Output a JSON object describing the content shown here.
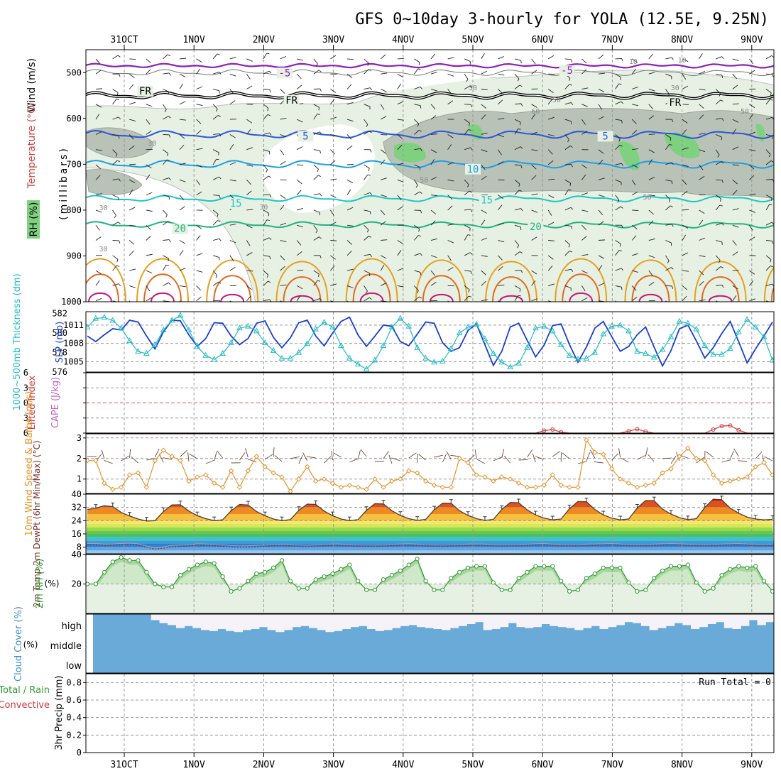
{
  "title": "GFS 0~10day 3-hourly for YOLA (12.5E, 9.25N)",
  "dates": [
    "31OCT",
    "1NOV",
    "2NOV",
    "3NOV",
    "4NOV",
    "5NOV",
    "6NOV",
    "7NOV",
    "8NOV",
    "9NOV"
  ],
  "colors": {
    "frame": "#000000",
    "grid": "#999999",
    "temp_purple": "#8b1fb8",
    "temp_blue": "#2c57d9",
    "temp_lightblue": "#1e9fe6",
    "temp_cyan": "#1ec6c6",
    "temp_green": "#20b47f",
    "temp_orange": "#e6a01e",
    "temp_darkorange": "#e06a1e",
    "temp_magenta": "#c8147a",
    "slp": "#1a3fd0",
    "thickness": "#22bcc4",
    "wind10": "#e6922a",
    "rh2m": "#2f9a2f",
    "cloud": "#6aaad8",
    "cloud_clear": "#f6f2fa"
  },
  "chart_data": [
    {
      "id": "upper_air",
      "type": "contour",
      "ylabel": "(millibars)",
      "side_labels": [
        "Wind (m/s)",
        "Temperature (°C)",
        "RH (%)"
      ],
      "yticks": [
        500,
        600,
        700,
        800,
        900,
        1000
      ],
      "ylim": [
        450,
        1000
      ],
      "isotherm_labels": [
        {
          "text": "-5",
          "day": 2.3,
          "p": 500
        },
        {
          "text": "-5",
          "day": 6.35,
          "p": 495
        },
        {
          "text": "FR",
          "day": 0.3,
          "p": 540
        },
        {
          "text": "FR",
          "day": 2.4,
          "p": 560
        },
        {
          "text": "FR",
          "day": 7.9,
          "p": 565
        },
        {
          "text": "5",
          "day": 2.6,
          "p": 638
        },
        {
          "text": "5",
          "day": 6.9,
          "p": 638
        },
        {
          "text": "10",
          "day": 5.0,
          "p": 710
        },
        {
          "text": "15",
          "day": 1.6,
          "p": 785
        },
        {
          "text": "15",
          "day": 5.2,
          "p": 778
        },
        {
          "text": "20",
          "day": 0.8,
          "p": 840
        },
        {
          "text": "20",
          "day": 5.9,
          "p": 836
        }
      ],
      "rh_labels": [
        "10",
        "30",
        "50",
        "60",
        "30",
        "50",
        "30",
        "30",
        "50",
        "30",
        "10",
        "30",
        "50"
      ]
    },
    {
      "id": "slp_thickness",
      "type": "line",
      "ylabel_left": "1000~500mb Thickness (dm)",
      "ylabel_right": "SLP (mb)",
      "yticks_left": [
        576,
        578,
        580,
        582
      ],
      "yticks_right": [
        1005,
        1008,
        1011
      ],
      "series": [
        {
          "name": "SLP (mb)",
          "values": [
            1009.2,
            1008.3,
            1009.4,
            1010.4,
            1010.2,
            1011.8,
            1011.5,
            1009.2,
            1007.1,
            1009.9,
            1011.8,
            1011.7,
            1009.4,
            1007.5,
            1008.8,
            1011.4,
            1011.3,
            1009.2,
            1007.8,
            1008.8,
            1011.3,
            1011.7,
            1009.0,
            1007.3,
            1008.9,
            1011.4,
            1011.8,
            1009.2,
            1007.6,
            1009.7,
            1011.6,
            1012.3,
            1009.4,
            1007.5,
            1009.2,
            1011.0,
            1010.8,
            1008.3,
            1007.6,
            1009.5,
            1011.5,
            1011.3,
            1008.1,
            1006.7,
            1007.3,
            1010.1,
            1011.2,
            1007.8,
            1004.4,
            1006.7,
            1010.7,
            1011.3,
            1008.5,
            1005.8,
            1007.7,
            1010.9,
            1011.2,
            1007.8,
            1004.9,
            1007.4,
            1010.5,
            1011.6,
            1009.1,
            1006.7,
            1007.5,
            1009.4,
            1010.7,
            1007.4,
            1004.3,
            1006.8,
            1010.4,
            1011.0,
            1008.4,
            1005.6,
            1007.3,
            1009.6,
            1011.6,
            1008.3,
            1004.8,
            1007.1,
            1009.2,
            1011.5
          ]
        },
        {
          "name": "Thickness (dm)",
          "values": [
            580.6,
            581.5,
            581.6,
            581.3,
            580.5,
            579.2,
            578.1,
            577.9,
            578.8,
            580.3,
            581.3,
            581.8,
            580.3,
            578.6,
            577.7,
            577.3,
            577.9,
            579.0,
            580.5,
            580.7,
            580.2,
            579.0,
            578.2,
            577.4,
            577.4,
            578.0,
            578.9,
            580.4,
            581.1,
            580.6,
            578.7,
            577.4,
            576.8,
            576.3,
            577.2,
            578.7,
            580.6,
            581.5,
            580.7,
            578.5,
            577.4,
            577.0,
            577.1,
            578.4,
            580.0,
            580.6,
            580.9,
            579.4,
            577.9,
            577.0,
            576.5,
            576.9,
            578.5,
            580.5,
            580.7,
            580.2,
            578.8,
            577.7,
            577.3,
            577.4,
            578.0,
            579.9,
            580.7,
            580.8,
            580.2,
            578.1,
            577.9,
            577.5,
            578.3,
            579.6,
            581.2,
            581.0,
            580.4,
            578.7,
            577.8,
            577.8,
            578.4,
            580.1,
            581.4,
            580.6,
            579.6,
            577.2
          ]
        }
      ]
    },
    {
      "id": "cape_li",
      "type": "line",
      "ylabel_left": "Lifted Index",
      "ylabel_right": "CAPE (J/kg)",
      "yticks": [
        -6,
        -3,
        0,
        3,
        6
      ],
      "ylim": [
        6,
        -6
      ],
      "reference_line": 0,
      "series": [
        {
          "name": "Lifted Index",
          "values": [
            6,
            6,
            6,
            6,
            6,
            6,
            6,
            6,
            6,
            6,
            6,
            6,
            6,
            6,
            6,
            6,
            6,
            6,
            6,
            6,
            6,
            6,
            6,
            6,
            6,
            6,
            6,
            6,
            6,
            6,
            6,
            6,
            6,
            6,
            6,
            6,
            6,
            6,
            6,
            6,
            6,
            6,
            6,
            6,
            6,
            6,
            6,
            6,
            6,
            6,
            6,
            6,
            6,
            6,
            5.5,
            5.3,
            5.8,
            6,
            6,
            6,
            6,
            6,
            6,
            6,
            5.6,
            5.2,
            5.7,
            6,
            6,
            6,
            6,
            6,
            6,
            6,
            5.3,
            4.6,
            4.5,
            5.4,
            6,
            6,
            6,
            6
          ]
        }
      ]
    },
    {
      "id": "wind10m",
      "type": "line",
      "ylabel": "10m Wind Speed & Barbs (m/s)",
      "yticks": [
        1,
        2,
        3
      ],
      "ylim": [
        0.3,
        3.2
      ],
      "series": [
        {
          "name": "10m Wind Speed",
          "values": [
            1.9,
            1.9,
            0.8,
            0.5,
            0.6,
            1.2,
            1.3,
            0.6,
            1.9,
            2.4,
            2.1,
            1.9,
            0.9,
            1.1,
            1.2,
            0.8,
            0.6,
            1.4,
            0.6,
            1.4,
            2.1,
            1.6,
            1.3,
            1.1,
            0.4,
            1.0,
            1.6,
            0.9,
            1.0,
            0.8,
            0.6,
            0.7,
            0.6,
            0.5,
            1.0,
            0.6,
            0.9,
            1.0,
            1.4,
            1.3,
            0.9,
            0.7,
            0.6,
            0.6,
            2.0,
            1.8,
            1.2,
            1.1,
            0.9,
            1.1,
            1.0,
            0.8,
            0.6,
            0.6,
            0.7,
            1.2,
            0.7,
            0.6,
            0.6,
            2.9,
            2.3,
            2.2,
            1.5,
            1.0,
            0.8,
            0.6,
            0.7,
            0.8,
            1.3,
            1.5,
            2.1,
            2.5,
            2.0,
            1.9,
            1.2,
            0.8,
            0.9,
            1.0,
            1.1,
            1.6,
            1.8,
            1.2
          ]
        }
      ]
    },
    {
      "id": "temp2m",
      "type": "area",
      "ylabel": "2m Temp 2m DewPt (6hr Min/Max) (°C)",
      "yticks": [
        8,
        16,
        24,
        32,
        40
      ],
      "ylim": [
        4,
        40
      ],
      "series": [
        {
          "name": "2m Temp",
          "values": [
            30.8,
            31.5,
            33.0,
            32.5,
            29.0,
            26.8,
            25.0,
            23.8,
            24.0,
            29.5,
            33.5,
            33.6,
            29.8,
            27.0,
            25.2,
            24.0,
            24.5,
            30.0,
            33.8,
            33.5,
            29.5,
            27.0,
            25.0,
            24.0,
            24.6,
            30.2,
            34.0,
            33.8,
            29.8,
            27.0,
            25.0,
            24.0,
            24.6,
            30.2,
            34.3,
            34.1,
            30.0,
            27.2,
            25.2,
            24.2,
            24.8,
            30.5,
            34.6,
            34.5,
            30.0,
            27.2,
            25.2,
            24.2,
            24.8,
            30.8,
            35.0,
            34.8,
            30.5,
            27.5,
            25.5,
            24.5,
            25.0,
            31.2,
            35.6,
            35.4,
            30.8,
            27.5,
            25.5,
            24.5,
            25.0,
            31.6,
            36.2,
            36.0,
            31.0,
            28.0,
            25.8,
            24.6,
            25.2,
            32.0,
            37.0,
            36.6,
            31.6,
            28.5,
            26.2,
            25.0,
            24.5,
            24.8
          ]
        },
        {
          "name": "2m DewPt",
          "values": [
            9.5,
            9.3,
            9.0,
            9.1,
            9.4,
            9.6,
            9.2,
            7.8,
            6.9,
            7.4,
            8.2,
            8.4,
            8.8,
            9.2,
            9.1,
            8.9,
            8.5,
            8.1,
            7.9,
            8.0,
            8.2,
            8.5,
            8.9,
            9.0,
            8.8,
            8.5,
            8.3,
            8.6,
            8.9,
            9.1,
            9.0,
            8.8,
            8.6,
            8.5,
            8.4,
            8.6,
            8.9,
            9.1,
            9.2,
            9.0,
            8.7,
            8.6,
            8.5,
            8.7,
            8.9,
            9.0,
            9.1,
            9.0,
            8.8,
            8.6,
            8.7,
            8.8,
            9.0,
            9.2,
            9.3,
            9.0,
            8.8,
            8.7,
            8.8,
            9.0,
            9.1,
            9.2,
            9.3,
            9.1,
            8.9,
            8.8,
            8.9,
            9.0,
            9.2,
            9.3,
            9.2,
            9.0,
            8.9,
            8.8,
            8.9,
            9.1,
            9.2,
            9.3,
            9.1,
            9.0,
            8.9,
            8.9
          ]
        }
      ]
    },
    {
      "id": "rh2m",
      "type": "area",
      "ylabel": "2m RH (%)",
      "yticks": [
        20,
        40
      ],
      "ylim": [
        0,
        40
      ],
      "series": [
        {
          "name": "2m RH",
          "values": [
            20,
            20,
            28,
            35,
            38,
            36,
            36,
            28,
            20,
            18,
            18,
            26,
            30,
            33,
            35,
            34,
            25,
            15,
            17,
            22,
            27,
            28,
            31,
            36,
            22,
            17,
            17,
            23,
            25,
            27,
            30,
            33,
            22,
            16,
            16,
            23,
            26,
            29,
            33,
            37,
            22,
            16,
            16,
            24,
            28,
            31,
            32,
            32,
            21,
            16,
            16,
            24,
            28,
            32,
            32,
            32,
            22,
            15,
            16,
            24,
            27,
            31,
            31,
            31,
            21,
            15,
            16,
            24,
            29,
            32,
            32,
            33,
            21,
            15,
            17,
            26,
            30,
            32,
            31,
            32,
            22,
            15
          ]
        }
      ]
    },
    {
      "id": "cloud_cover",
      "type": "area",
      "ylabel": "Cloud Cover (%)",
      "levels": [
        "high",
        "middle",
        "low"
      ],
      "series": [
        {
          "name": "high",
          "values": [
            100,
            100,
            100,
            100,
            100,
            100,
            100,
            70,
            55,
            45,
            30,
            40,
            30,
            20,
            15,
            25,
            15,
            10,
            20,
            25,
            35,
            20,
            10,
            20,
            35,
            40,
            30,
            20,
            10,
            15,
            25,
            35,
            40,
            25,
            15,
            20,
            30,
            40,
            45,
            35,
            30,
            25,
            20,
            30,
            40,
            50,
            60,
            20,
            25,
            35,
            55,
            35,
            30,
            35,
            50,
            40,
            35,
            30,
            20,
            30,
            40,
            25,
            35,
            45,
            60,
            55,
            40,
            20,
            30,
            40,
            55,
            45,
            25,
            35,
            50,
            60,
            30,
            25,
            40,
            70,
            45,
            60
          ]
        }
      ]
    },
    {
      "id": "precip",
      "type": "bar",
      "ylabel": "3hr Precip (mm)",
      "side_labels": [
        "Total / Rain",
        "Convective"
      ],
      "annotation": "Run Total = 0",
      "yticks": [
        0,
        0.2,
        0.4,
        0.6,
        0.8
      ],
      "ylim": [
        0,
        0.9
      ],
      "values": []
    }
  ]
}
